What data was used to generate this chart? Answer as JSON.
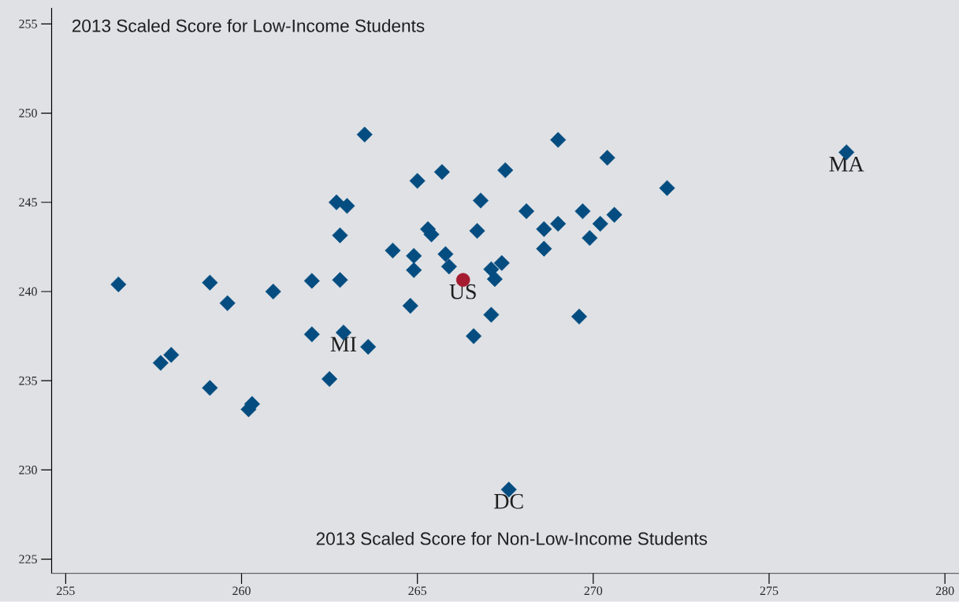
{
  "chart_data": {
    "type": "scatter",
    "xlabel": "2013 Scaled Score for Non-Low-Income Students",
    "ylabel": "2013 Scaled Score for Low-Income Students",
    "xlim": [
      254.6,
      280.4
    ],
    "ylim": [
      224.2,
      255.9
    ],
    "xticks": [
      255,
      260,
      265,
      270,
      275,
      280
    ],
    "yticks": [
      225,
      230,
      235,
      240,
      245,
      250,
      255
    ],
    "series": [
      {
        "color": "#054d80",
        "marker": "diamond",
        "x": [
          256.5,
          257.7,
          258.0,
          259.1,
          259.1,
          259.6,
          260.2,
          260.3,
          260.9,
          262.0,
          262.0,
          262.5,
          262.7,
          263.0,
          262.8,
          262.8,
          262.9,
          263.6,
          263.5,
          264.3,
          264.9,
          264.9,
          265.0,
          265.3,
          265.4,
          264.8,
          265.7,
          265.8,
          265.9,
          266.6,
          266.7,
          266.8,
          267.1,
          267.2,
          267.4,
          267.1,
          267.5,
          267.6,
          268.1,
          268.6,
          268.6,
          269.0,
          269.0,
          269.6,
          269.7,
          269.9,
          270.2,
          270.4,
          270.6,
          272.1,
          277.2
        ],
        "values": [
          240.4,
          236.0,
          236.45,
          240.5,
          234.6,
          239.35,
          233.4,
          233.7,
          240.0,
          240.6,
          237.6,
          235.1,
          245.0,
          244.8,
          243.15,
          240.65,
          237.7,
          236.9,
          248.8,
          242.3,
          242.0,
          241.2,
          246.2,
          243.5,
          243.2,
          239.2,
          246.7,
          242.1,
          241.4,
          237.5,
          243.4,
          245.1,
          241.25,
          240.7,
          241.6,
          238.7,
          246.8,
          228.9,
          244.5,
          243.5,
          242.4,
          248.5,
          243.8,
          238.6,
          244.5,
          243.0,
          243.8,
          247.5,
          244.3,
          245.8,
          247.8
        ]
      },
      {
        "color": "#a51c30",
        "marker": "circle",
        "x": [
          266.3
        ],
        "values": [
          240.65
        ]
      }
    ],
    "annotations": [
      {
        "text": "MI",
        "x": 262.9,
        "y": 237.7
      },
      {
        "text": "US",
        "x": 266.3,
        "y": 240.65
      },
      {
        "text": "DC",
        "x": 267.6,
        "y": 228.9
      },
      {
        "text": "MA",
        "x": 277.2,
        "y": 247.8
      }
    ]
  }
}
